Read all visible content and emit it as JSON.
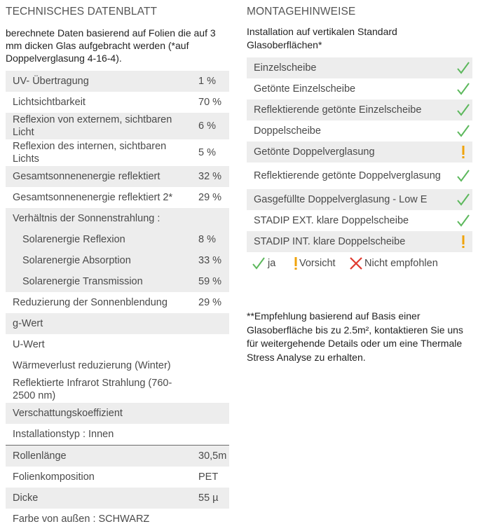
{
  "left": {
    "heading": "TECHNISCHES DATENBLATT",
    "intro": "berechnete Daten basierend auf Folien die auf 3 mm dicken Glas aufgebracht werden (*auf Doppelverglasung 4-16-4).",
    "rows": [
      {
        "label": "UV- Übertragung",
        "value": "1 %"
      },
      {
        "label": "Lichtsichtbarkeit",
        "value": "70 %"
      },
      {
        "label": "Reflexion von externem, sichtbaren Licht",
        "value": "6 %"
      },
      {
        "label": "Reflexion des internen, sichtbaren Lichts",
        "value": "5 %"
      },
      {
        "label": "Gesamtsonnenenergie reflektiert",
        "value": "32 %"
      },
      {
        "label": "Gesamtsonnenenergie reflektiert 2*",
        "value": "29 %"
      },
      {
        "label": "Verhältnis der Sonnenstrahlung :",
        "value": ""
      },
      {
        "label": "Solarenergie Reflexion",
        "value": "8 %"
      },
      {
        "label": "Solarenergie Absorption",
        "value": "33 %"
      },
      {
        "label": "Solarenergie Transmission",
        "value": "59 %"
      },
      {
        "label": "Reduzierung der Sonnenblendung",
        "value": "29 %"
      },
      {
        "label": "g-Wert",
        "value": ""
      },
      {
        "label": "U-Wert",
        "value": ""
      },
      {
        "label": "Wärmeverlust reduzierung (Winter)",
        "value": ""
      },
      {
        "label": "Reflektierte Infrarot Strahlung (760-2500 nm)",
        "value": ""
      },
      {
        "label": "Verschattungskoeffizient",
        "value": ""
      },
      {
        "label": "Installationstyp : Innen",
        "value": ""
      },
      {
        "label": "Rollenlänge",
        "value": "30,5m"
      },
      {
        "label": "Folienkomposition",
        "value": "PET"
      },
      {
        "label": "Dicke",
        "value": "55 µ"
      },
      {
        "label": "Farbe von außen : SCHWARZ",
        "value": ""
      }
    ]
  },
  "right": {
    "heading": "MONTAGEHINWEISE",
    "intro": "Installation auf vertikalen Standard Glasoberflächen*",
    "items": [
      {
        "label": "Einzelscheibe",
        "status": "check-icon"
      },
      {
        "label": "Getönte Einzelscheibe",
        "status": "check-icon"
      },
      {
        "label": "Reflektierende getönte Einzelscheibe",
        "status": "check-icon"
      },
      {
        "label": "Doppelscheibe",
        "status": "check-icon"
      },
      {
        "label": "Getönte Doppelverglasung",
        "status": "exclamation-icon"
      },
      {
        "label": "Reflektierende getönte Doppelverglasung",
        "status": "check-icon"
      },
      {
        "label": "Gasgefüllte Doppelverglasung - Low E",
        "status": "check-icon"
      },
      {
        "label": "STADIP EXT. klare Doppelscheibe",
        "status": "check-icon"
      },
      {
        "label": "STADIP INT. klare Doppelscheibe",
        "status": "exclamation-icon"
      }
    ],
    "legend": {
      "yes": "ja",
      "caution": "Vorsicht",
      "no": "Nicht empfohlen"
    },
    "footnote": "**Empfehlung basierend auf Basis einer Glasoberfläche bis zu 2.5m², kontaktieren Sie uns für weitergehende Details oder um eine Thermale Stress Analyse zu erhalten."
  },
  "colors": {
    "check": "#5cb85c",
    "caution": "#f0a30a",
    "no": "#e03a2f",
    "shade": "#ededed"
  }
}
